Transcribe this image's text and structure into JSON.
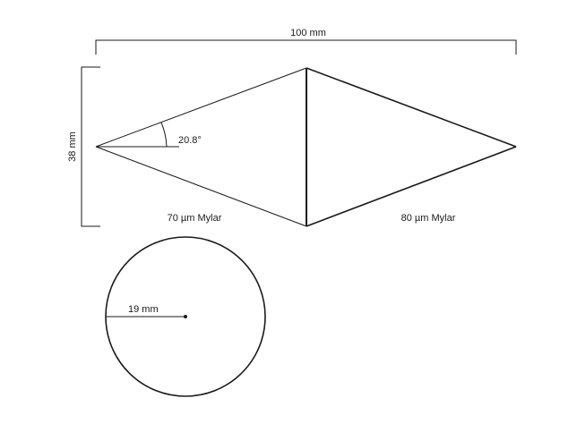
{
  "dimensions": {
    "length_label": "100 mm",
    "height_label": "38 mm",
    "angle_label": "20.8°",
    "radius_label": "19 mm"
  },
  "materials": {
    "left_label": "70 µm Mylar",
    "right_label": "80 µm Mylar"
  }
}
